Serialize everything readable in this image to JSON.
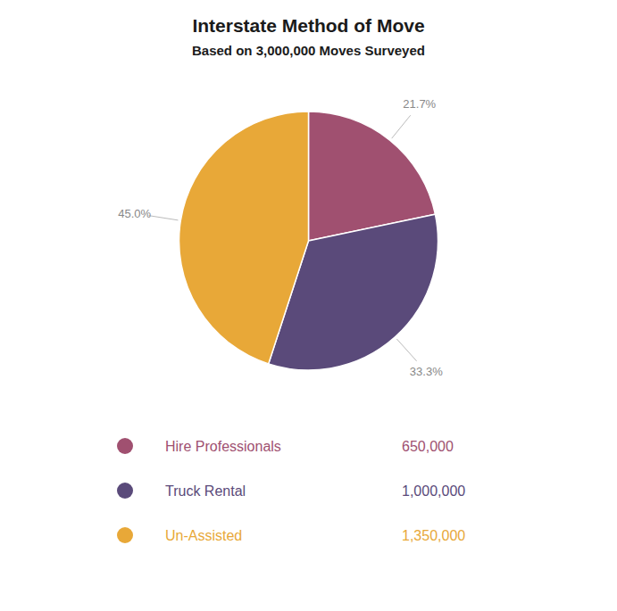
{
  "chart_data": {
    "type": "pie",
    "title": "Interstate Method of Move",
    "subtitle": "Based on 3,000,000 Moves Surveyed",
    "categories": [
      "Hire Professionals",
      "Truck Rental",
      "Un-Assisted"
    ],
    "values": [
      21.7,
      33.3,
      45.0
    ],
    "value_labels": [
      "21.7%",
      "33.3%",
      "45.0%"
    ],
    "counts": [
      650000,
      1000000,
      1350000
    ],
    "count_labels": [
      "650,000",
      "1,000,000",
      "1,350,000"
    ],
    "colors": [
      "#a05070",
      "#5a4a7a",
      "#e8a838"
    ],
    "legend": "bottom"
  }
}
